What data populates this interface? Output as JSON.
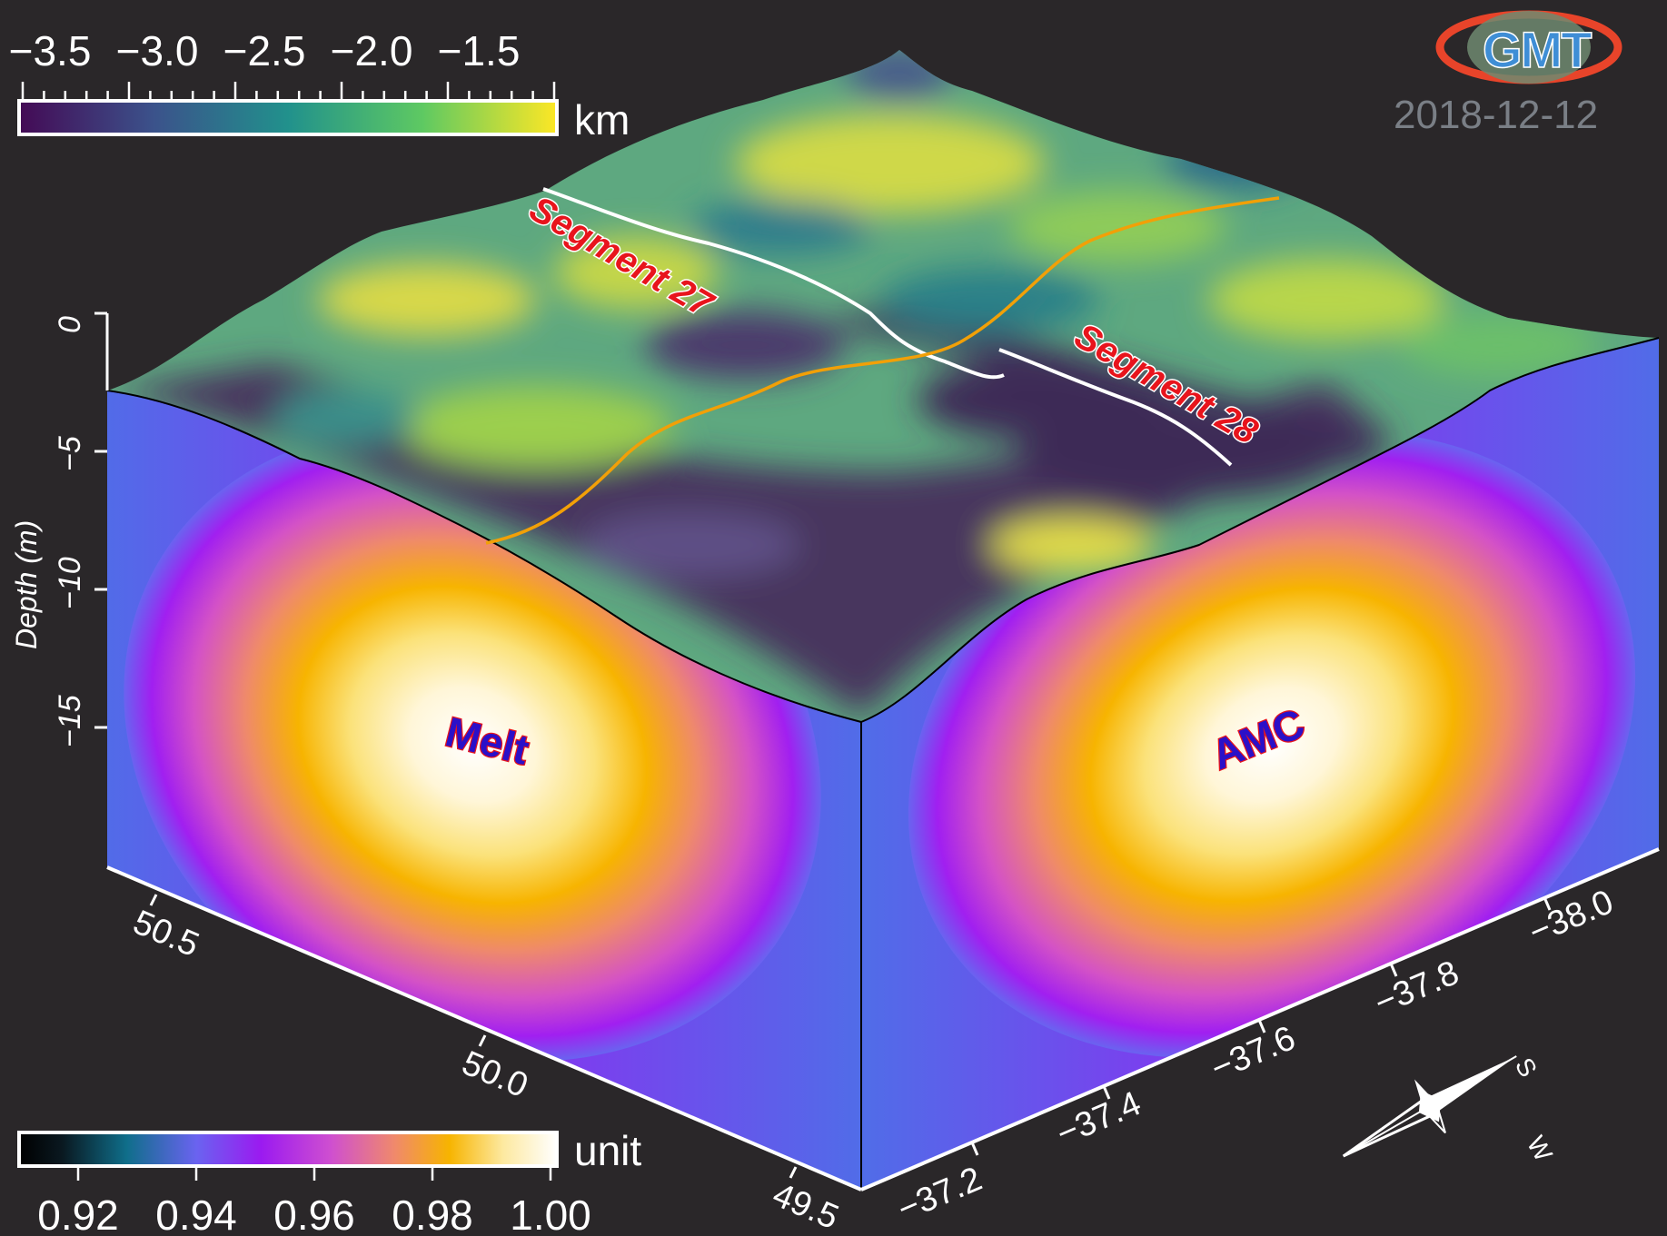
{
  "depth_colorbar": {
    "ticks": [
      "−3.5",
      "−3.0",
      "−2.5",
      "−2.0",
      "−1.5"
    ],
    "unit": "km"
  },
  "density_colorbar": {
    "ticks": [
      "0.92",
      "0.94",
      "0.96",
      "0.98",
      "1.00"
    ],
    "unit": "unit"
  },
  "depth_axis": {
    "label": "Depth (m)",
    "ticks": [
      "0",
      "−5",
      "−10",
      "−15"
    ]
  },
  "x_axis_left": {
    "ticks": [
      "50.5",
      "50.0",
      "49.5"
    ]
  },
  "x_axis_right": {
    "ticks": [
      "−37.2",
      "−37.4",
      "−37.6",
      "−37.8",
      "−38.0"
    ]
  },
  "annotations": {
    "segment_27": "Segment 27",
    "segment_28": "Segment 28",
    "melt": "Melt",
    "amc": "AMC"
  },
  "logo": {
    "name": "gmt-logo",
    "text": "GMT",
    "date": "2018-12-12"
  },
  "compass": {
    "name": "compass-rose-icon",
    "labels": [
      "S",
      "W"
    ]
  },
  "colors": {
    "background": "#2a2729",
    "segment_track": "#ffffff",
    "profile_track": "#f2a007",
    "label_red": "#e8141c",
    "label_blue": "#2b10c8"
  }
}
